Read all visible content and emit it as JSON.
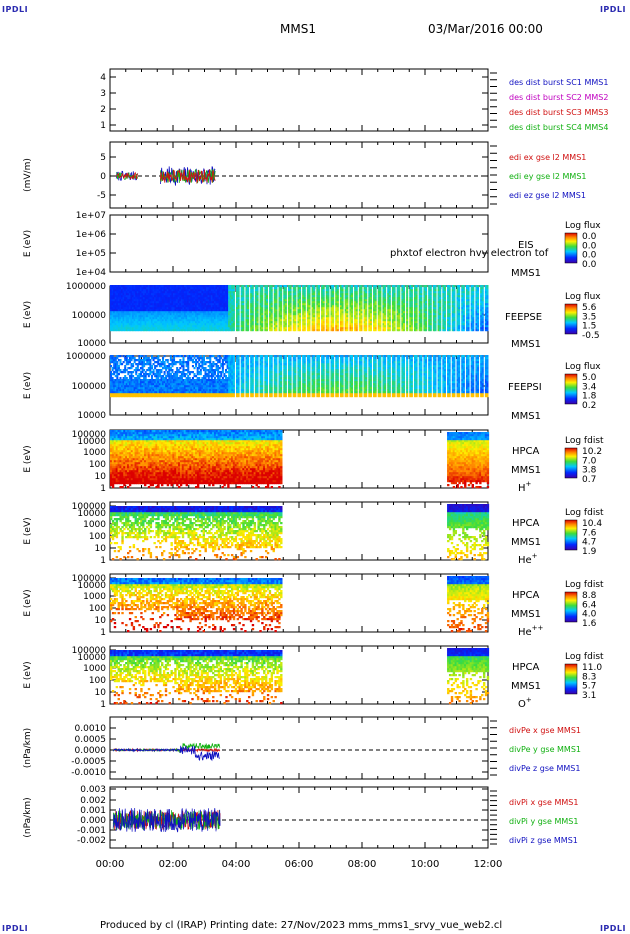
{
  "header": {
    "corner_left_top": "IPDLI",
    "corner_right_top": "IPDLI",
    "spacecraft": "MMS1",
    "date": "03/Mar/2016 00:00",
    "corner_left_bottom": "IPDLI",
    "corner_right_bottom": "IPDLI"
  },
  "footer": {
    "text": "Produced by cl (IRAP)   Printing date: 27/Nov/2023   mms_mms1_srvy_vue_web2.cl"
  },
  "colors": {
    "mms1": "#1010c0",
    "mms2": "#c000c0",
    "mms3": "#d01010",
    "mms4": "#10b010",
    "x": "#d01010",
    "y": "#10b010",
    "z": "#1010c0"
  },
  "chart_data": [
    {
      "type": "line",
      "id": "des",
      "y_ticks": [
        "4",
        "3",
        "2",
        "1"
      ],
      "ylim": [
        0.5,
        4.5
      ],
      "legend": [
        "des dist burst SC1 MMS1",
        "des dist burst SC2 MMS2",
        "des dist burst SC3 MMS3",
        "des dist burst SC4 MMS4"
      ]
    },
    {
      "type": "line",
      "id": "edi",
      "ylabel": "(mV/m)",
      "y_ticks": [
        "5",
        "0",
        "-5"
      ],
      "ylim": [
        -8,
        8
      ],
      "legend": [
        "edi ex gse l2 MMS1",
        "edi ey gse l2 MMS1",
        "edi ez gse l2 MMS1"
      ]
    },
    {
      "type": "heatmap",
      "id": "eis",
      "ylabel": "E (eV)",
      "y_ticks": [
        "1e+07",
        "1e+06",
        "1e+05",
        "1e+04"
      ],
      "yscale": "log",
      "label1": "EIS",
      "label2": "MMS1",
      "overlay": "phxtof electron hvy electron tof",
      "colorbar_title": "Log flux",
      "colorbar_ticks": [
        "0.0",
        "0.0",
        "0.0",
        "0.0"
      ]
    },
    {
      "type": "heatmap",
      "id": "feepse",
      "ylabel": "E (eV)",
      "y_ticks": [
        "1000000",
        "100000",
        "10000"
      ],
      "yscale": "log",
      "label1": "FEEPSE",
      "label2": "MMS1",
      "colorbar_title": "Log flux",
      "colorbar_ticks": [
        "5.6",
        "3.5",
        "1.5",
        "-0.5"
      ]
    },
    {
      "type": "heatmap",
      "id": "feepsi",
      "ylabel": "E (eV)",
      "y_ticks": [
        "1000000",
        "100000",
        "10000"
      ],
      "yscale": "log",
      "label1": "FEEPSI",
      "label2": "MMS1",
      "colorbar_title": "Log flux",
      "colorbar_ticks": [
        "5.0",
        "3.4",
        "1.8",
        "0.2"
      ]
    },
    {
      "type": "heatmap",
      "id": "hpca-h",
      "ylabel": "E (eV)",
      "y_ticks": [
        "100000",
        "10000",
        "1000",
        "100",
        "10",
        "1"
      ],
      "yscale": "log",
      "label1": "HPCA",
      "label2": "MMS1",
      "species": "H",
      "charge": "+",
      "colorbar_title": "Log fdist",
      "colorbar_ticks": [
        "10.2",
        "7.0",
        "3.8",
        "0.7"
      ]
    },
    {
      "type": "heatmap",
      "id": "hpca-he",
      "ylabel": "E (eV)",
      "y_ticks": [
        "100000",
        "10000",
        "1000",
        "100",
        "10",
        "1"
      ],
      "yscale": "log",
      "label1": "HPCA",
      "label2": "MMS1",
      "species": "He",
      "charge": "+",
      "colorbar_title": "Log fdist",
      "colorbar_ticks": [
        "10.4",
        "7.6",
        "4.7",
        "1.9"
      ]
    },
    {
      "type": "heatmap",
      "id": "hpca-hepp",
      "ylabel": "E (eV)",
      "y_ticks": [
        "100000",
        "10000",
        "1000",
        "100",
        "10",
        "1"
      ],
      "yscale": "log",
      "label1": "HPCA",
      "label2": "MMS1",
      "species": "He",
      "charge": "++",
      "colorbar_title": "Log fdist",
      "colorbar_ticks": [
        "8.8",
        "6.4",
        "4.0",
        "1.6"
      ]
    },
    {
      "type": "heatmap",
      "id": "hpca-o",
      "ylabel": "E (eV)",
      "y_ticks": [
        "100000",
        "10000",
        "1000",
        "100",
        "10",
        "1"
      ],
      "yscale": "log",
      "label1": "HPCA",
      "label2": "MMS1",
      "species": "O",
      "charge": "+",
      "colorbar_title": "Log fdist",
      "colorbar_ticks": [
        "11.0",
        "8.3",
        "5.7",
        "3.1"
      ]
    },
    {
      "type": "line",
      "id": "divpe",
      "ylabel": "(nPa/km)",
      "y_ticks": [
        "0.0010",
        "0.0005",
        "0.0000",
        "-0.0005",
        "-0.0010"
      ],
      "ylim": [
        -0.0013,
        0.0014
      ],
      "legend": [
        "divPe x gse MMS1",
        "divPe y gse MMS1",
        "divPe z gse MMS1"
      ]
    },
    {
      "type": "line",
      "id": "divpi",
      "ylabel": "(nPa/km)",
      "y_ticks": [
        "0.003",
        "0.002",
        "0.001",
        "0.000",
        "-0.001",
        "-0.002"
      ],
      "ylim": [
        -0.0026,
        0.0032
      ],
      "legend": [
        "divPi x gse MMS1",
        "divPi y gse MMS1",
        "divPi z gse MMS1"
      ]
    }
  ],
  "x_axis": {
    "ticks": [
      "00:00",
      "02:00",
      "04:00",
      "06:00",
      "08:00",
      "10:00",
      "12:00"
    ],
    "range_hours": [
      0,
      12
    ]
  }
}
